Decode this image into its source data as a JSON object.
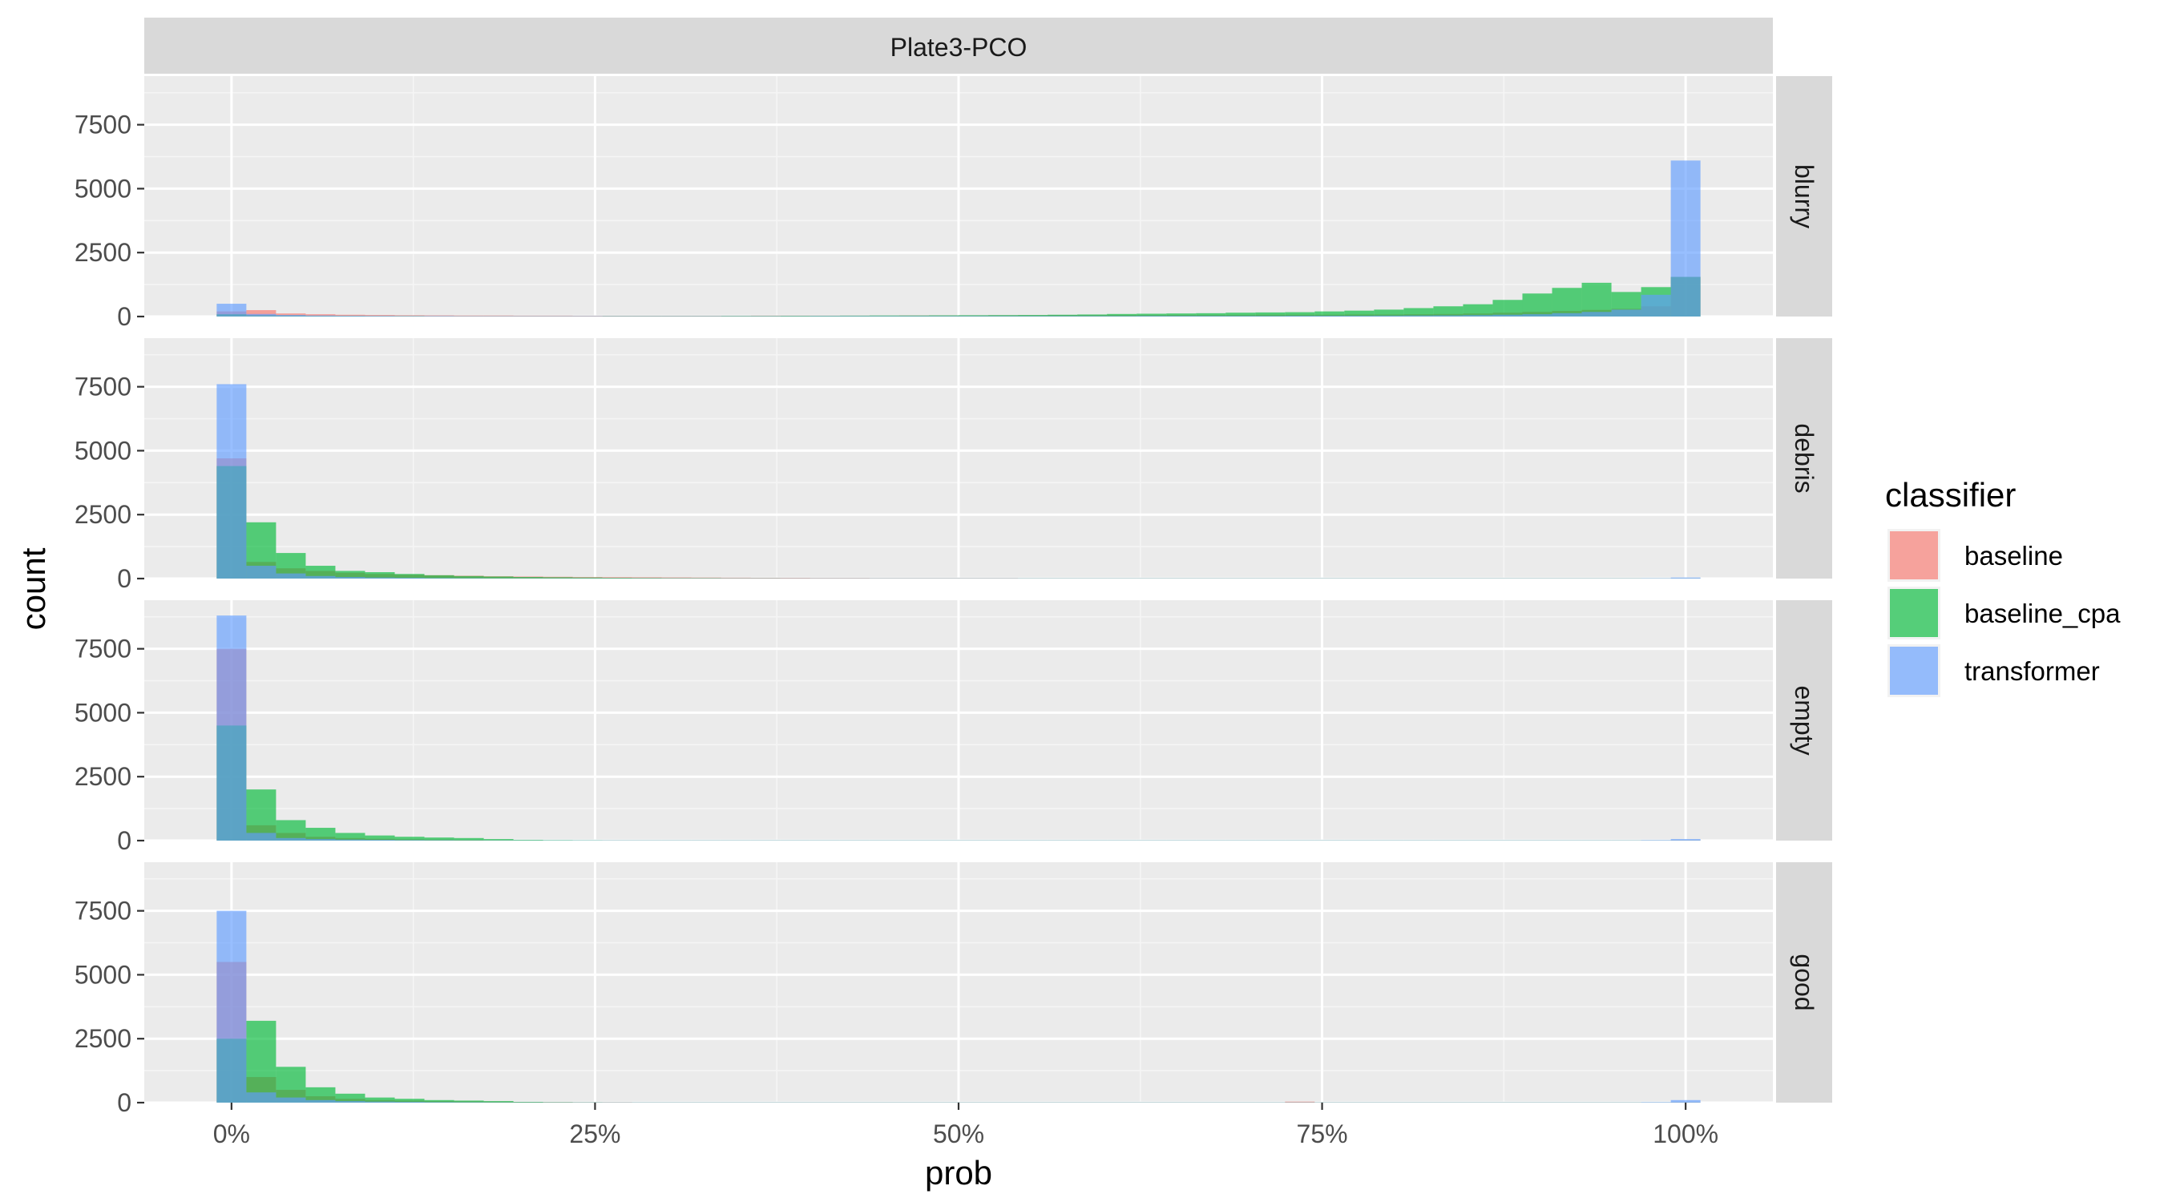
{
  "chart_data": {
    "type": "histogram",
    "title": "",
    "facet_column_label": "Plate3-PCO",
    "xlabel": "prob",
    "ylabel": "count",
    "x_ticks": [
      "0%",
      "25%",
      "50%",
      "75%",
      "100%"
    ],
    "x_tick_values": [
      0,
      0.25,
      0.5,
      0.75,
      1
    ],
    "y_ticks": [
      "0",
      "2500",
      "5000",
      "7500"
    ],
    "y_tick_values": [
      0,
      2500,
      5000,
      7500
    ],
    "xlim": [
      -0.06,
      1.06
    ],
    "ylim": [
      0,
      9400
    ],
    "bins": 50,
    "bin_range": [
      -0.0102,
      1.0102
    ],
    "grid": true,
    "legend": {
      "title": "classifier",
      "position": "right"
    },
    "colors": {
      "baseline": "#F8766D",
      "baseline_cpa": "#00BA38",
      "transformer": "#619CFF"
    },
    "series_names": [
      "baseline",
      "baseline_cpa",
      "transformer"
    ],
    "facets": [
      {
        "label": "blurry",
        "series": [
          {
            "name": "baseline",
            "values": [
              200,
              250,
              120,
              90,
              70,
              60,
              50,
              45,
              40,
              40,
              35,
              35,
              30,
              30,
              30,
              30,
              30,
              30,
              35,
              35,
              35,
              35,
              35,
              40,
              40,
              40,
              45,
              45,
              50,
              50,
              55,
              55,
              60,
              60,
              60,
              70,
              70,
              70,
              80,
              80,
              90,
              100,
              120,
              150,
              180,
              220,
              260,
              300,
              400,
              1550
            ]
          },
          {
            "name": "baseline_cpa",
            "values": [
              90,
              50,
              40,
              30,
              25,
              20,
              20,
              15,
              15,
              15,
              15,
              15,
              15,
              20,
              20,
              20,
              20,
              25,
              25,
              30,
              30,
              35,
              40,
              40,
              45,
              50,
              55,
              60,
              70,
              80,
              100,
              110,
              120,
              130,
              150,
              160,
              170,
              200,
              230,
              270,
              330,
              400,
              480,
              650,
              900,
              1120,
              1320,
              960,
              1150,
              1550
            ]
          },
          {
            "name": "transformer",
            "values": [
              500,
              100,
              60,
              40,
              30,
              25,
              20,
              20,
              15,
              15,
              15,
              15,
              15,
              15,
              15,
              15,
              15,
              15,
              15,
              15,
              20,
              20,
              20,
              20,
              20,
              20,
              20,
              20,
              20,
              20,
              20,
              25,
              25,
              25,
              25,
              25,
              30,
              30,
              30,
              35,
              40,
              45,
              55,
              70,
              90,
              130,
              180,
              270,
              850,
              6100
            ]
          }
        ]
      },
      {
        "label": "debris",
        "series": [
          {
            "name": "baseline",
            "values": [
              4700,
              650,
              400,
              300,
              230,
              180,
              150,
              130,
              110,
              90,
              80,
              70,
              60,
              55,
              50,
              45,
              40,
              35,
              30,
              30,
              25,
              25,
              20,
              20,
              20,
              20,
              20,
              15,
              15,
              15,
              15,
              15,
              15,
              15,
              15,
              15,
              15,
              15,
              15,
              15,
              15,
              15,
              15,
              15,
              15,
              15,
              15,
              15,
              15,
              15
            ]
          },
          {
            "name": "baseline_cpa",
            "values": [
              4400,
              2200,
              1000,
              500,
              300,
              250,
              180,
              130,
              100,
              80,
              60,
              50,
              40,
              30,
              25,
              20,
              20,
              15,
              15,
              10,
              10,
              10,
              10,
              10,
              10,
              10,
              10,
              10,
              10,
              10,
              10,
              10,
              10,
              10,
              10,
              10,
              10,
              10,
              10,
              10,
              10,
              10,
              10,
              10,
              10,
              10,
              10,
              10,
              10,
              10
            ]
          },
          {
            "name": "transformer",
            "values": [
              7600,
              500,
              200,
              100,
              60,
              40,
              30,
              20,
              15,
              10,
              10,
              10,
              10,
              10,
              10,
              10,
              10,
              10,
              10,
              10,
              10,
              10,
              10,
              10,
              10,
              10,
              10,
              10,
              10,
              10,
              10,
              10,
              10,
              10,
              10,
              10,
              10,
              10,
              10,
              10,
              10,
              10,
              10,
              10,
              10,
              10,
              10,
              10,
              15,
              40
            ]
          }
        ]
      },
      {
        "label": "empty",
        "series": [
          {
            "name": "baseline",
            "values": [
              7500,
              600,
              300,
              150,
              100,
              70,
              50,
              40,
              30,
              20,
              15,
              10,
              10,
              10,
              10,
              10,
              10,
              10,
              10,
              10,
              10,
              10,
              10,
              10,
              10,
              10,
              10,
              10,
              10,
              10,
              10,
              10,
              10,
              10,
              10,
              10,
              10,
              10,
              10,
              10,
              10,
              10,
              10,
              10,
              10,
              10,
              10,
              10,
              15,
              20
            ]
          },
          {
            "name": "baseline_cpa",
            "values": [
              4500,
              2000,
              800,
              500,
              300,
              200,
              150,
              120,
              100,
              60,
              30,
              20,
              15,
              10,
              10,
              10,
              10,
              10,
              10,
              10,
              10,
              10,
              10,
              10,
              10,
              10,
              10,
              10,
              10,
              10,
              10,
              10,
              10,
              10,
              10,
              10,
              10,
              10,
              10,
              10,
              10,
              10,
              10,
              10,
              10,
              10,
              10,
              10,
              10,
              10
            ]
          },
          {
            "name": "transformer",
            "values": [
              8800,
              300,
              100,
              60,
              40,
              30,
              20,
              15,
              10,
              10,
              10,
              10,
              10,
              10,
              10,
              10,
              10,
              10,
              10,
              10,
              10,
              10,
              10,
              10,
              10,
              10,
              10,
              10,
              10,
              10,
              10,
              10,
              10,
              10,
              10,
              10,
              10,
              10,
              10,
              10,
              10,
              10,
              10,
              10,
              10,
              10,
              10,
              10,
              20,
              60
            ]
          }
        ]
      },
      {
        "label": "good",
        "series": [
          {
            "name": "baseline",
            "values": [
              5500,
              1000,
              500,
              250,
              150,
              100,
              80,
              60,
              50,
              40,
              30,
              25,
              20,
              20,
              15,
              15,
              15,
              15,
              15,
              15,
              15,
              15,
              15,
              15,
              15,
              15,
              15,
              15,
              15,
              15,
              15,
              15,
              15,
              15,
              15,
              15,
              40,
              15,
              15,
              15,
              15,
              15,
              15,
              15,
              15,
              15,
              15,
              15,
              15,
              20
            ]
          },
          {
            "name": "baseline_cpa",
            "values": [
              2500,
              3200,
              1400,
              600,
              350,
              200,
              150,
              100,
              80,
              60,
              30,
              20,
              15,
              10,
              10,
              10,
              10,
              10,
              10,
              10,
              10,
              10,
              10,
              10,
              10,
              10,
              10,
              10,
              10,
              10,
              10,
              10,
              10,
              10,
              10,
              10,
              10,
              10,
              10,
              10,
              10,
              10,
              10,
              10,
              10,
              10,
              10,
              10,
              10,
              10
            ]
          },
          {
            "name": "transformer",
            "values": [
              7500,
              400,
              200,
              100,
              60,
              40,
              30,
              20,
              15,
              10,
              10,
              10,
              10,
              10,
              10,
              10,
              10,
              10,
              10,
              10,
              10,
              10,
              10,
              10,
              10,
              10,
              10,
              10,
              10,
              10,
              10,
              10,
              10,
              10,
              10,
              10,
              10,
              10,
              10,
              10,
              10,
              10,
              10,
              10,
              10,
              10,
              10,
              10,
              20,
              100
            ]
          }
        ]
      }
    ]
  }
}
